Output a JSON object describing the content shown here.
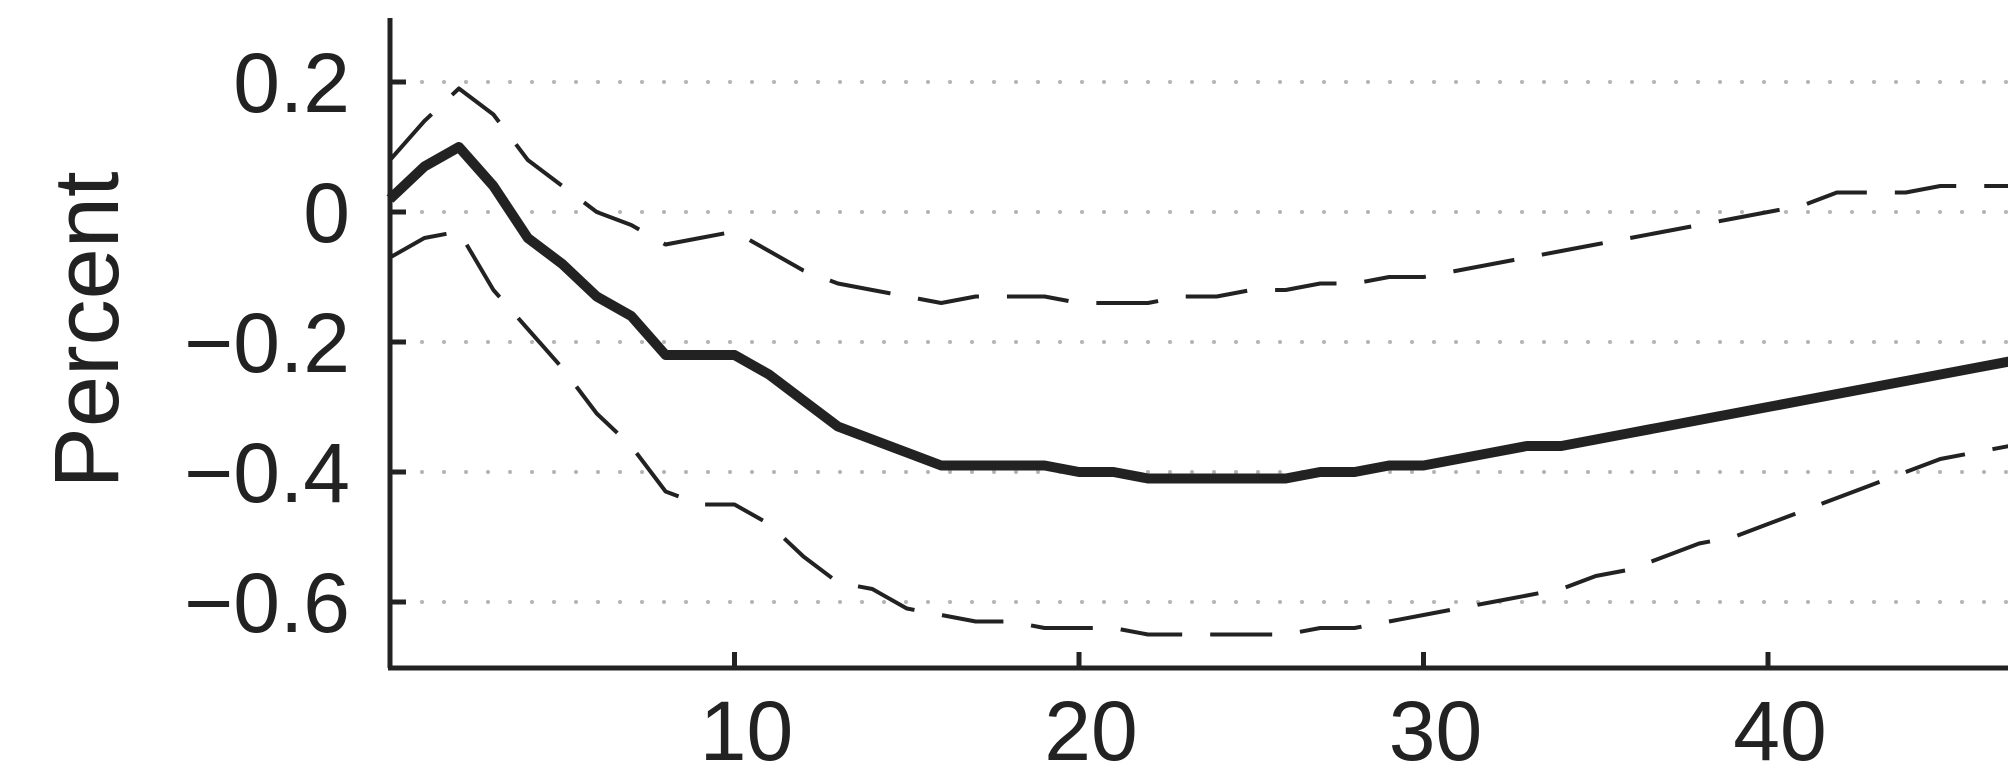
{
  "chart_data": {
    "type": "line",
    "title": "",
    "xlabel": "",
    "ylabel": "Percent",
    "xlim": [
      0,
      47
    ],
    "ylim": [
      -0.65,
      0.3
    ],
    "xticks": [
      10,
      20,
      30,
      40
    ],
    "xtick_labels": [
      "10",
      "20",
      "30",
      "40"
    ],
    "yticks": [
      0.2,
      0,
      -0.2,
      -0.4,
      -0.6
    ],
    "ytick_labels": [
      "0.2",
      "0",
      "−0.2",
      "−0.4",
      "−0.6"
    ],
    "grid": "dotted horizontal",
    "legend": "none",
    "series": [
      {
        "style": "solid",
        "x": [
          0,
          1,
          2,
          3,
          4,
          5,
          6,
          7,
          8,
          9,
          10,
          11,
          12,
          13,
          14,
          15,
          16,
          17,
          18,
          19,
          20,
          21,
          22,
          23,
          24,
          25,
          26,
          27,
          28,
          29,
          30,
          31,
          32,
          33,
          34,
          35,
          36,
          37,
          38,
          39,
          40,
          41,
          42,
          43,
          44,
          45,
          46,
          47
        ],
        "y": [
          0.02,
          0.07,
          0.1,
          0.04,
          -0.04,
          -0.08,
          -0.13,
          -0.16,
          -0.22,
          -0.22,
          -0.22,
          -0.25,
          -0.29,
          -0.33,
          -0.35,
          -0.37,
          -0.39,
          -0.39,
          -0.39,
          -0.39,
          -0.4,
          -0.4,
          -0.41,
          -0.41,
          -0.41,
          -0.41,
          -0.41,
          -0.4,
          -0.4,
          -0.39,
          -0.39,
          -0.38,
          -0.37,
          -0.36,
          -0.36,
          -0.35,
          -0.34,
          -0.33,
          -0.32,
          -0.31,
          -0.3,
          -0.29,
          -0.28,
          -0.27,
          -0.26,
          -0.25,
          -0.24,
          -0.23
        ]
      },
      {
        "style": "dashed",
        "x": [
          0,
          1,
          2,
          3,
          4,
          5,
          6,
          7,
          8,
          9,
          10,
          11,
          12,
          13,
          14,
          15,
          16,
          17,
          18,
          19,
          20,
          21,
          22,
          23,
          24,
          25,
          26,
          27,
          28,
          29,
          30,
          31,
          32,
          33,
          34,
          35,
          36,
          37,
          38,
          39,
          40,
          41,
          42,
          43,
          44,
          45,
          46,
          47
        ],
        "y": [
          0.08,
          0.14,
          0.19,
          0.15,
          0.08,
          0.04,
          0.0,
          -0.02,
          -0.05,
          -0.04,
          -0.03,
          -0.06,
          -0.09,
          -0.11,
          -0.12,
          -0.13,
          -0.14,
          -0.13,
          -0.13,
          -0.13,
          -0.14,
          -0.14,
          -0.14,
          -0.13,
          -0.13,
          -0.12,
          -0.12,
          -0.11,
          -0.11,
          -0.1,
          -0.1,
          -0.09,
          -0.08,
          -0.07,
          -0.06,
          -0.05,
          -0.04,
          -0.03,
          -0.02,
          -0.01,
          0.0,
          0.01,
          0.03,
          0.03,
          0.03,
          0.04,
          0.04,
          0.04
        ]
      },
      {
        "style": "dashed",
        "x": [
          0,
          1,
          2,
          3,
          4,
          5,
          6,
          7,
          8,
          9,
          10,
          11,
          12,
          13,
          14,
          15,
          16,
          17,
          18,
          19,
          20,
          21,
          22,
          23,
          24,
          25,
          26,
          27,
          28,
          29,
          30,
          31,
          32,
          33,
          34,
          35,
          36,
          37,
          38,
          39,
          40,
          41,
          42,
          43,
          44,
          45,
          46,
          47
        ],
        "y": [
          -0.07,
          -0.04,
          -0.03,
          -0.12,
          -0.18,
          -0.24,
          -0.31,
          -0.36,
          -0.43,
          -0.45,
          -0.45,
          -0.48,
          -0.53,
          -0.57,
          -0.58,
          -0.61,
          -0.62,
          -0.63,
          -0.63,
          -0.64,
          -0.64,
          -0.64,
          -0.65,
          -0.65,
          -0.65,
          -0.65,
          -0.65,
          -0.64,
          -0.64,
          -0.63,
          -0.62,
          -0.61,
          -0.6,
          -0.59,
          -0.58,
          -0.56,
          -0.55,
          -0.53,
          -0.51,
          -0.5,
          -0.48,
          -0.46,
          -0.44,
          -0.42,
          -0.4,
          -0.38,
          -0.37,
          -0.36
        ]
      }
    ]
  }
}
